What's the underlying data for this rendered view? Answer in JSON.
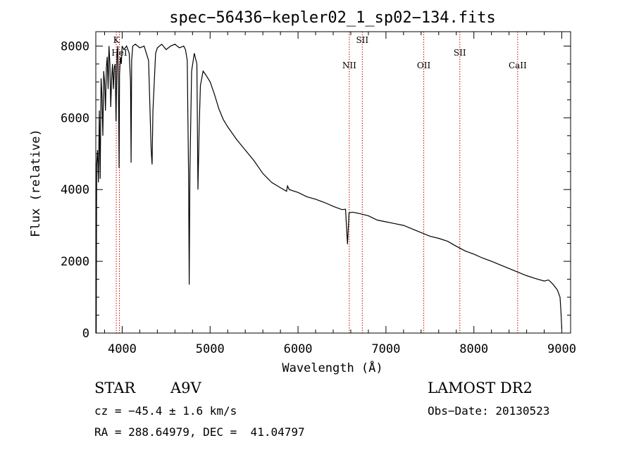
{
  "chart_data": {
    "type": "line",
    "title": "spec−56436−kepler02_1_sp02−134.fits",
    "xlabel": "Wavelength (Å)",
    "ylabel": "Flux (relative)",
    "xlim": [
      3700,
      9100
    ],
    "ylim": [
      0,
      8400
    ],
    "xticks": [
      4000,
      5000,
      6000,
      7000,
      8000,
      9000
    ],
    "yticks": [
      0,
      2000,
      4000,
      6000,
      8000
    ],
    "line_color": "#000000",
    "marker_color": "#cc0000",
    "series": [
      {
        "x": [
          3705,
          3710,
          3720,
          3730,
          3740,
          3750,
          3760,
          3770,
          3780,
          3790,
          3800,
          3810,
          3820,
          3830,
          3840,
          3850,
          3860,
          3870,
          3880,
          3890,
          3900,
          3910,
          3920,
          3930,
          3940,
          3950,
          3960,
          3965,
          3970,
          3980,
          3990,
          4000,
          4020,
          4050,
          4080,
          4095,
          4101,
          4108,
          4120,
          4150,
          4200,
          4250,
          4300,
          4330,
          4340,
          4350,
          4380,
          4400,
          4450,
          4500,
          4550,
          4600,
          4650,
          4700,
          4720,
          4740,
          4755,
          4762,
          4770,
          4790,
          4820,
          4850,
          4862,
          4875,
          4890,
          4920,
          4950,
          5000,
          5050,
          5100,
          5150,
          5200,
          5300,
          5400,
          5500,
          5600,
          5700,
          5800,
          5870,
          5880,
          5900,
          6000,
          6100,
          6200,
          6300,
          6400,
          6500,
          6540,
          6563,
          6580,
          6620,
          6700,
          6800,
          6900,
          7000,
          7100,
          7200,
          7300,
          7400,
          7500,
          7600,
          7700,
          7800,
          7900,
          8000,
          8100,
          8200,
          8300,
          8400,
          8500,
          8600,
          8700,
          8800,
          8850,
          8900,
          8950,
          8980,
          8990,
          9000
        ],
        "y": [
          0,
          4700,
          5100,
          4200,
          6200,
          4300,
          7100,
          6600,
          5500,
          7300,
          7000,
          6200,
          7400,
          7700,
          6800,
          8000,
          7500,
          6300,
          7100,
          7500,
          6800,
          7400,
          7500,
          5900,
          7700,
          8000,
          6200,
          4600,
          7200,
          7700,
          7500,
          8000,
          7900,
          8000,
          7800,
          7000,
          4750,
          7600,
          8000,
          8050,
          7950,
          8000,
          7600,
          5100,
          4700,
          6200,
          7800,
          7950,
          8050,
          7900,
          8000,
          8050,
          7950,
          8000,
          7900,
          7600,
          4400,
          1350,
          4500,
          7300,
          7800,
          7500,
          4000,
          5700,
          6900,
          7300,
          7200,
          7000,
          6650,
          6250,
          5950,
          5750,
          5400,
          5100,
          4800,
          4450,
          4200,
          4050,
          3950,
          4100,
          4000,
          3920,
          3800,
          3730,
          3640,
          3530,
          3440,
          3450,
          2480,
          3350,
          3370,
          3330,
          3270,
          3150,
          3100,
          3050,
          3000,
          2900,
          2800,
          2700,
          2640,
          2560,
          2420,
          2290,
          2200,
          2090,
          2000,
          1900,
          1800,
          1700,
          1600,
          1520,
          1450,
          1480,
          1360,
          1200,
          1000,
          600,
          100
        ]
      }
    ],
    "line_markers": [
      {
        "label": "K",
        "x": 3933
      },
      {
        "label": "HeI",
        "x": 3968
      },
      {
        "label": "NII",
        "x": 6583
      },
      {
        "label": "SII",
        "x": 6731
      },
      {
        "label": "OII",
        "x": 7430
      },
      {
        "label": "SII",
        "x": 7840
      },
      {
        "label": "CaII",
        "x": 8498
      }
    ]
  },
  "info": {
    "object_type": "STAR",
    "subclass": "A9V",
    "survey": "LAMOST DR2",
    "cz": "cz = −45.4 ± 1.6 km/s",
    "obs_date": "Obs−Date: 20130523",
    "coords": "RA = 288.64979, DEC =  41.04797"
  }
}
